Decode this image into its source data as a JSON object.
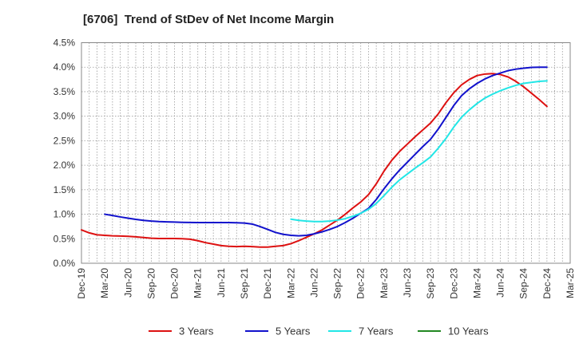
{
  "chart_data": {
    "type": "line",
    "title": "[6706]  Trend of StDev of Net Income Margin",
    "xlabel": "",
    "ylabel": "",
    "ylim": [
      0,
      4.5
    ],
    "y_ticks": [
      "0.0%",
      "0.5%",
      "1.0%",
      "1.5%",
      "2.0%",
      "2.5%",
      "3.0%",
      "3.5%",
      "4.0%",
      "4.5%"
    ],
    "x_ticks": [
      "Dec-19",
      "Mar-20",
      "Jun-20",
      "Sep-20",
      "Dec-20",
      "Mar-21",
      "Jun-21",
      "Sep-21",
      "Dec-21",
      "Mar-22",
      "Jun-22",
      "Sep-22",
      "Dec-22",
      "Mar-23",
      "Jun-23",
      "Sep-23",
      "Dec-23",
      "Mar-24",
      "Jun-24",
      "Sep-24",
      "Dec-24",
      "Mar-25"
    ],
    "grid": true,
    "legend_position": "bottom",
    "series": [
      {
        "name": "3 Years",
        "color": "#dd1111",
        "points": [
          [
            "Dec-19",
            0.68
          ],
          [
            "Jan-20",
            0.62
          ],
          [
            "Feb-20",
            0.58
          ],
          [
            "Mar-20",
            0.57
          ],
          [
            "Apr-20",
            0.56
          ],
          [
            "May-20",
            0.555
          ],
          [
            "Jun-20",
            0.55
          ],
          [
            "Jul-20",
            0.54
          ],
          [
            "Aug-20",
            0.525
          ],
          [
            "Sep-20",
            0.51
          ],
          [
            "Oct-20",
            0.505
          ],
          [
            "Nov-20",
            0.505
          ],
          [
            "Dec-20",
            0.505
          ],
          [
            "Jan-21",
            0.5
          ],
          [
            "Feb-21",
            0.49
          ],
          [
            "Mar-21",
            0.46
          ],
          [
            "Apr-21",
            0.42
          ],
          [
            "May-21",
            0.39
          ],
          [
            "Jun-21",
            0.36
          ],
          [
            "Jul-21",
            0.345
          ],
          [
            "Aug-21",
            0.34
          ],
          [
            "Sep-21",
            0.345
          ],
          [
            "Oct-21",
            0.34
          ],
          [
            "Nov-21",
            0.33
          ],
          [
            "Dec-21",
            0.33
          ],
          [
            "Jan-22",
            0.345
          ],
          [
            "Feb-22",
            0.36
          ],
          [
            "Mar-22",
            0.4
          ],
          [
            "Apr-22",
            0.46
          ],
          [
            "May-22",
            0.53
          ],
          [
            "Jun-22",
            0.6
          ],
          [
            "Jul-22",
            0.68
          ],
          [
            "Aug-22",
            0.78
          ],
          [
            "Sep-22",
            0.88
          ],
          [
            "Oct-22",
            1.0
          ],
          [
            "Nov-22",
            1.13
          ],
          [
            "Dec-22",
            1.25
          ],
          [
            "Jan-23",
            1.4
          ],
          [
            "Feb-23",
            1.62
          ],
          [
            "Mar-23",
            1.88
          ],
          [
            "Apr-23",
            2.1
          ],
          [
            "May-23",
            2.28
          ],
          [
            "Jun-23",
            2.43
          ],
          [
            "Jul-23",
            2.58
          ],
          [
            "Aug-23",
            2.72
          ],
          [
            "Sep-23",
            2.86
          ],
          [
            "Oct-23",
            3.05
          ],
          [
            "Nov-23",
            3.28
          ],
          [
            "Dec-23",
            3.48
          ],
          [
            "Jan-24",
            3.64
          ],
          [
            "Feb-24",
            3.75
          ],
          [
            "Mar-24",
            3.83
          ],
          [
            "Apr-24",
            3.86
          ],
          [
            "May-24",
            3.87
          ],
          [
            "Jun-24",
            3.85
          ],
          [
            "Jul-24",
            3.8
          ],
          [
            "Aug-24",
            3.71
          ],
          [
            "Sep-24",
            3.6
          ],
          [
            "Oct-24",
            3.47
          ],
          [
            "Nov-24",
            3.34
          ],
          [
            "Dec-24",
            3.2
          ]
        ]
      },
      {
        "name": "5 Years",
        "color": "#1111cc",
        "points": [
          [
            "Mar-20",
            1.0
          ],
          [
            "Apr-20",
            0.975
          ],
          [
            "May-20",
            0.945
          ],
          [
            "Jun-20",
            0.92
          ],
          [
            "Jul-20",
            0.895
          ],
          [
            "Aug-20",
            0.875
          ],
          [
            "Sep-20",
            0.86
          ],
          [
            "Oct-20",
            0.85
          ],
          [
            "Nov-20",
            0.845
          ],
          [
            "Dec-20",
            0.84
          ],
          [
            "Jan-21",
            0.835
          ],
          [
            "Feb-21",
            0.832
          ],
          [
            "Mar-21",
            0.83
          ],
          [
            "Apr-21",
            0.83
          ],
          [
            "May-21",
            0.83
          ],
          [
            "Jun-21",
            0.83
          ],
          [
            "Jul-21",
            0.83
          ],
          [
            "Aug-21",
            0.825
          ],
          [
            "Sep-21",
            0.82
          ],
          [
            "Oct-21",
            0.8
          ],
          [
            "Nov-21",
            0.75
          ],
          [
            "Dec-21",
            0.69
          ],
          [
            "Jan-22",
            0.63
          ],
          [
            "Feb-22",
            0.59
          ],
          [
            "Mar-22",
            0.57
          ],
          [
            "Apr-22",
            0.56
          ],
          [
            "May-22",
            0.57
          ],
          [
            "Jun-22",
            0.6
          ],
          [
            "Jul-22",
            0.64
          ],
          [
            "Aug-22",
            0.69
          ],
          [
            "Sep-22",
            0.75
          ],
          [
            "Oct-22",
            0.83
          ],
          [
            "Nov-22",
            0.92
          ],
          [
            "Dec-22",
            1.02
          ],
          [
            "Jan-23",
            1.12
          ],
          [
            "Feb-23",
            1.3
          ],
          [
            "Mar-23",
            1.52
          ],
          [
            "Apr-23",
            1.72
          ],
          [
            "May-23",
            1.9
          ],
          [
            "Jun-23",
            2.06
          ],
          [
            "Jul-23",
            2.22
          ],
          [
            "Aug-23",
            2.38
          ],
          [
            "Sep-23",
            2.53
          ],
          [
            "Oct-23",
            2.74
          ],
          [
            "Nov-23",
            2.98
          ],
          [
            "Dec-23",
            3.22
          ],
          [
            "Jan-24",
            3.42
          ],
          [
            "Feb-24",
            3.56
          ],
          [
            "Mar-24",
            3.67
          ],
          [
            "Apr-24",
            3.76
          ],
          [
            "May-24",
            3.83
          ],
          [
            "Jun-24",
            3.88
          ],
          [
            "Jul-24",
            3.93
          ],
          [
            "Aug-24",
            3.96
          ],
          [
            "Sep-24",
            3.98
          ],
          [
            "Oct-24",
            3.995
          ],
          [
            "Nov-24",
            4.0
          ],
          [
            "Dec-24",
            4.0
          ]
        ]
      },
      {
        "name": "7 Years",
        "color": "#22e6e6",
        "points": [
          [
            "Mar-22",
            0.9
          ],
          [
            "Apr-22",
            0.875
          ],
          [
            "May-22",
            0.86
          ],
          [
            "Jun-22",
            0.85
          ],
          [
            "Jul-22",
            0.85
          ],
          [
            "Aug-22",
            0.86
          ],
          [
            "Sep-22",
            0.88
          ],
          [
            "Oct-22",
            0.91
          ],
          [
            "Nov-22",
            0.96
          ],
          [
            "Dec-22",
            1.02
          ],
          [
            "Jan-23",
            1.1
          ],
          [
            "Feb-23",
            1.22
          ],
          [
            "Mar-23",
            1.38
          ],
          [
            "Apr-23",
            1.55
          ],
          [
            "May-23",
            1.7
          ],
          [
            "Jun-23",
            1.82
          ],
          [
            "Jul-23",
            1.94
          ],
          [
            "Aug-23",
            2.05
          ],
          [
            "Sep-23",
            2.17
          ],
          [
            "Oct-23",
            2.35
          ],
          [
            "Nov-23",
            2.55
          ],
          [
            "Dec-23",
            2.78
          ],
          [
            "Jan-24",
            2.98
          ],
          [
            "Feb-24",
            3.13
          ],
          [
            "Mar-24",
            3.26
          ],
          [
            "Apr-24",
            3.37
          ],
          [
            "May-24",
            3.45
          ],
          [
            "Jun-24",
            3.52
          ],
          [
            "Jul-24",
            3.58
          ],
          [
            "Aug-24",
            3.63
          ],
          [
            "Sep-24",
            3.67
          ],
          [
            "Oct-24",
            3.69
          ],
          [
            "Nov-24",
            3.71
          ],
          [
            "Dec-24",
            3.72
          ]
        ]
      },
      {
        "name": "10 Years",
        "color": "#228822",
        "points": []
      }
    ]
  }
}
